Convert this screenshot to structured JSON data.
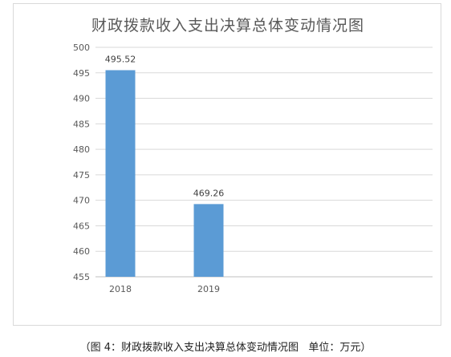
{
  "chart_data": {
    "type": "bar",
    "title": "财政拨款收入支出决算总体变动情况图",
    "categories": [
      "2018",
      "2019"
    ],
    "values": [
      495.52,
      469.26
    ],
    "value_labels": [
      "495.52",
      "469.26"
    ],
    "ylim": [
      455,
      500
    ],
    "yticks": [
      455,
      460,
      465,
      470,
      475,
      480,
      485,
      490,
      495,
      500
    ],
    "grid": true,
    "legend": "none",
    "bar_color": "#5b9bd5"
  },
  "caption": {
    "figure": "（图 4：财政拨款收入支出决算总体变动情况图",
    "unit": "单位：万元）"
  }
}
